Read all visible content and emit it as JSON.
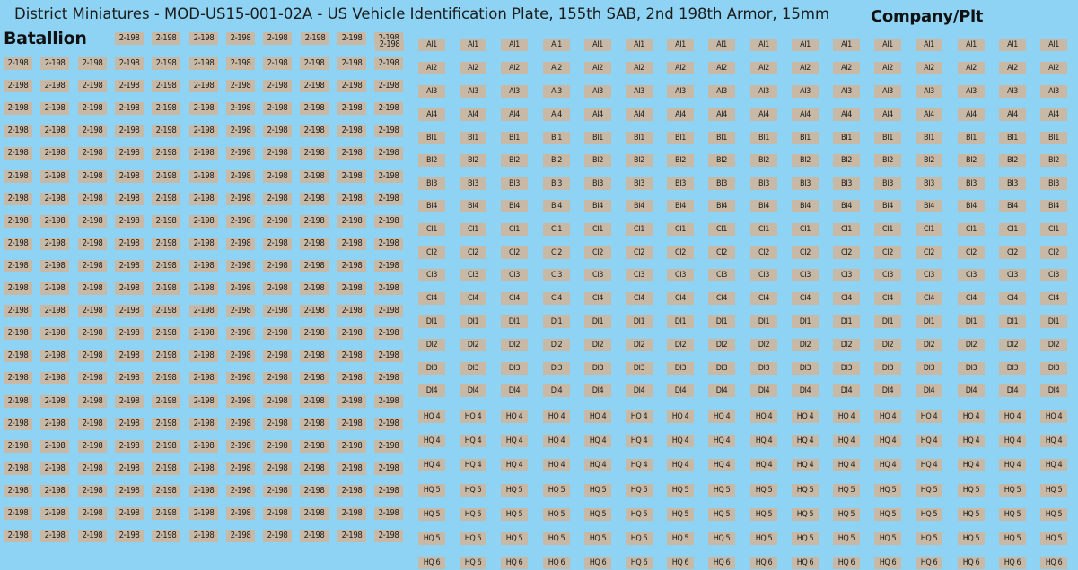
{
  "title": "District Miniatures - MOD-US15-001-02A - US Vehicle Identification Plate, 155th SAB, 2nd 198th Armor, 15mm",
  "sections": {
    "battalion_label": "Batallion",
    "company_label": "Company/Plt"
  },
  "battalion_plate_text": "2-198",
  "battalion": {
    "first_row_count": 8,
    "columns": 11,
    "rows": 23
  },
  "company_rows": [
    "AI1",
    "AI2",
    "AI3",
    "AI4",
    "BI1",
    "BI2",
    "BI3",
    "BI4",
    "CI1",
    "CI2",
    "CI3",
    "CI4",
    "DI1",
    "DI2",
    "DI3",
    "DI4",
    "HQ 4",
    "HQ 4",
    "HQ 4",
    "HQ 5",
    "HQ 5",
    "HQ 5",
    "HQ 6"
  ],
  "company_columns": 16,
  "colors": {
    "background": "#8fd3f4",
    "plate": "#c8b9a6",
    "text": "#1c1c1c"
  }
}
